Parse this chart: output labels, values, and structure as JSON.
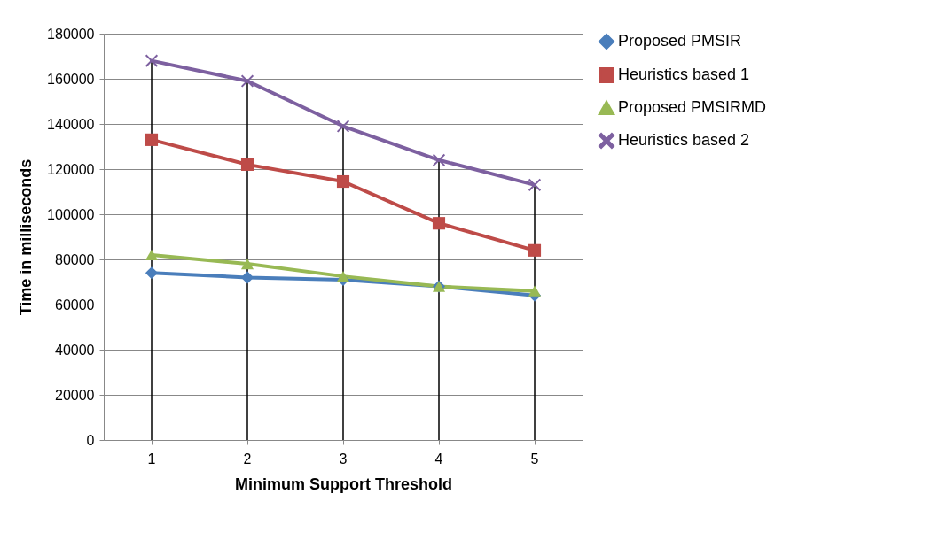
{
  "chart_data": {
    "type": "line",
    "xlabel": "Minimum Support Threshold",
    "ylabel": "Time in milliseconds",
    "categories": [
      "1",
      "2",
      "3",
      "4",
      "5"
    ],
    "series": [
      {
        "name": "Proposed PMSIR",
        "color": "#4a7ebb",
        "marker": "diamond",
        "values": [
          74000,
          72000,
          71000,
          68000,
          64000
        ]
      },
      {
        "name": "Heuristics based 1",
        "color": "#be4b48",
        "marker": "square",
        "values": [
          133000,
          122000,
          114500,
          96000,
          84000
        ]
      },
      {
        "name": "Proposed PMSIRMD",
        "color": "#98b954",
        "marker": "triangle",
        "values": [
          82000,
          78000,
          72500,
          68000,
          66000
        ]
      },
      {
        "name": "Heuristics based 2",
        "color": "#7d60a0",
        "marker": "cross",
        "values": [
          168000,
          159000,
          139000,
          124000,
          113000
        ]
      }
    ],
    "ref_lines": [
      {
        "axis": "x",
        "value": "1",
        "color": "#000000"
      },
      {
        "axis": "x",
        "value": "2",
        "color": "#000000"
      },
      {
        "axis": "x",
        "value": "3",
        "color": "#000000"
      },
      {
        "axis": "x",
        "value": "4",
        "color": "#000000"
      },
      {
        "axis": "x",
        "value": "5",
        "color": "#000000"
      }
    ],
    "ylim": [
      0,
      180000
    ],
    "yticks": [
      0,
      20000,
      40000,
      60000,
      80000,
      100000,
      120000,
      140000,
      160000,
      180000
    ],
    "grid": "y",
    "legend": "right"
  }
}
